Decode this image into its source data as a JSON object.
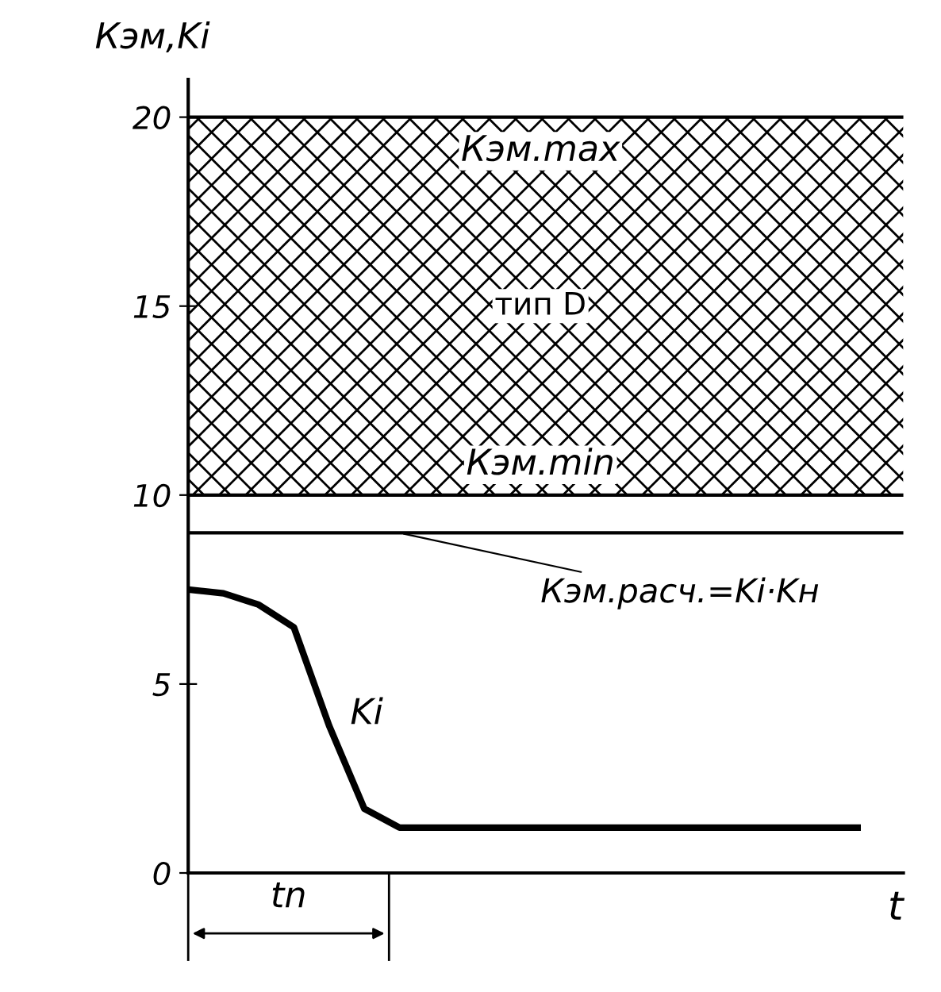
{
  "chart_data": {
    "type": "line",
    "xlabel": "t",
    "ylabel": "Кэм,Ki",
    "categories": [
      null,
      null,
      null,
      null,
      null,
      null,
      null,
      null,
      null,
      null,
      null,
      null,
      null,
      null,
      null,
      null,
      null,
      null,
      null,
      null
    ],
    "series": [
      {
        "name": "Ki",
        "color": "#000000",
        "values": [
          7.5,
          7.4,
          7.1,
          6.5,
          3.9,
          1.7,
          1.2,
          1.2,
          1.2,
          1.2,
          1.2,
          1.2,
          1.2,
          1.2,
          1.2,
          1.2,
          1.2,
          1.2,
          1.2,
          1.2
        ]
      }
    ],
    "ylim": [
      0,
      21
    ],
    "yticks": [
      0,
      5,
      10,
      15,
      20
    ],
    "bands": [
      {
        "axis": "y",
        "from": 10,
        "to": 20,
        "label": "тип D"
      }
    ],
    "ref_lines": [
      {
        "axis": "y",
        "value": 9,
        "label": "Кэм.расч.=Ki·Kн"
      }
    ],
    "annotations": [
      "Кэм.max",
      "Кэм.min",
      "tn"
    ],
    "legend": false
  }
}
